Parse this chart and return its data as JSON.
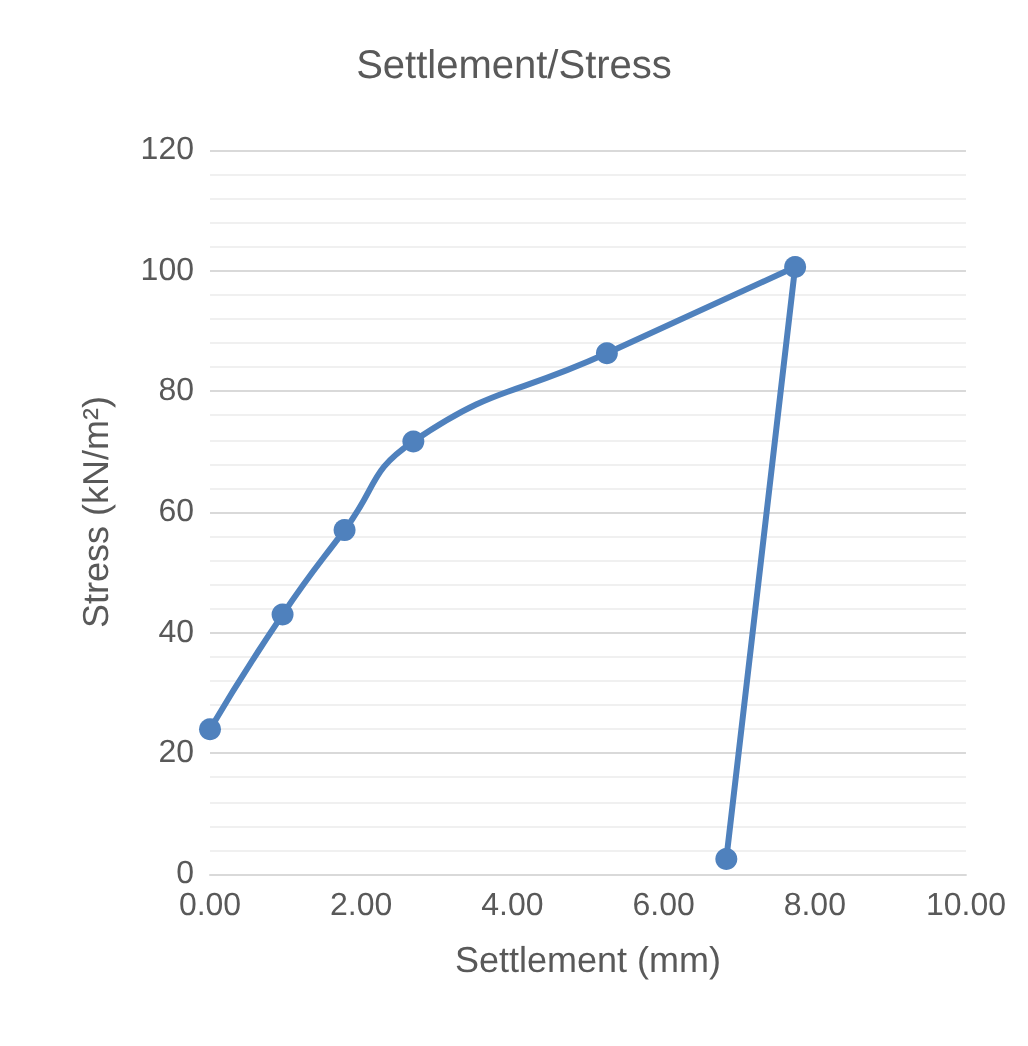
{
  "chart_data": {
    "type": "line",
    "title": "Settlement/Stress",
    "xlabel": "Settlement (mm)",
    "ylabel": "Stress (kN/m²)",
    "x": [
      0,
      0.96,
      1.78,
      2.69,
      5.25,
      7.74,
      6.83
    ],
    "series": [
      {
        "color": "#4f81bd",
        "values": [
          24,
          43,
          57,
          71.7,
          86.3,
          100.6,
          2.5
        ]
      }
    ],
    "xlim": [
      0,
      10
    ],
    "xticks": [
      {
        "value": 0,
        "label": "0.00"
      },
      {
        "value": 2,
        "label": "2.00"
      },
      {
        "value": 4,
        "label": "4.00"
      },
      {
        "value": 6,
        "label": "6.00"
      },
      {
        "value": 8,
        "label": "8.00"
      },
      {
        "value": 10,
        "label": "10.00"
      }
    ],
    "ylim": [
      0,
      120
    ],
    "yticks": [
      0,
      20,
      40,
      60,
      80,
      100,
      120
    ],
    "grid": "y",
    "marker": "circle",
    "line_style": "solid"
  }
}
